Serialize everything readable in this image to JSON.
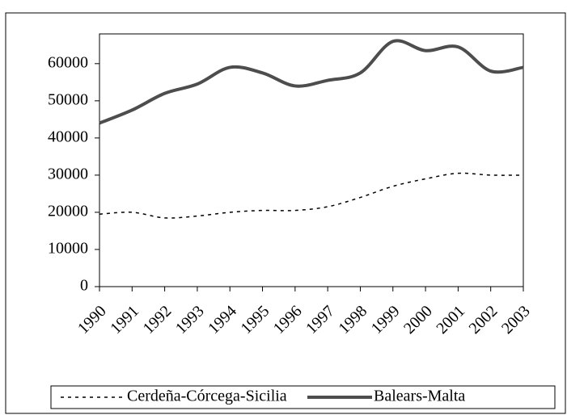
{
  "chart_data": {
    "type": "line",
    "categories": [
      "1990",
      "1991",
      "1992",
      "1993",
      "1994",
      "1995",
      "1996",
      "1997",
      "1998",
      "1999",
      "2000",
      "2001",
      "2002",
      "2003"
    ],
    "series": [
      {
        "name": "Cerdeña-Córcega-Sicilia",
        "color": "#000000",
        "dash": true,
        "values": [
          19500,
          20000,
          18500,
          19000,
          20000,
          20500,
          20500,
          21500,
          24000,
          27000,
          29000,
          30500,
          30000,
          30000
        ]
      },
      {
        "name": "Balears-Malta",
        "color": "#4d4d4d",
        "dash": false,
        "values": [
          44000,
          47500,
          52000,
          54500,
          59000,
          57500,
          54000,
          55500,
          57500,
          66000,
          63500,
          64500,
          58000,
          59000
        ]
      }
    ],
    "ylim": [
      0,
      68000
    ],
    "yticks": [
      0,
      10000,
      20000,
      30000,
      40000,
      50000,
      60000
    ]
  }
}
